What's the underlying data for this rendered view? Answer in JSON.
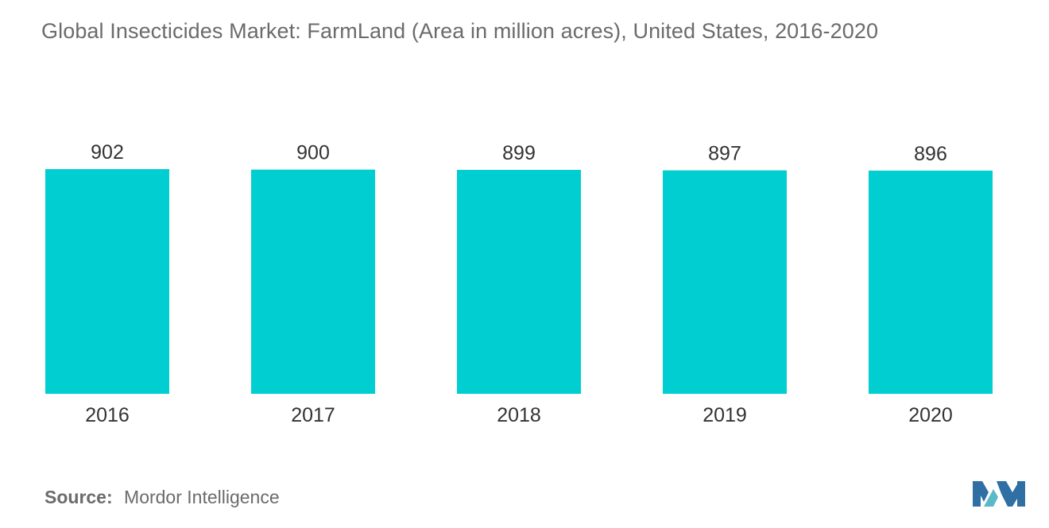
{
  "title": "Global Insecticides Market: FarmLand (Area in million acres), United States, 2016-2020",
  "source": {
    "label": "Source:",
    "text": "Mordor Intelligence"
  },
  "logo": {
    "icon": "mordor-intelligence-logo-icon",
    "colors": [
      "#2f6fa3",
      "#5ab9c9"
    ]
  },
  "colors": {
    "bar": "#00ced1",
    "title": "#6b6b6b",
    "labels": "#333333"
  },
  "chart_data": {
    "type": "bar",
    "title": "Global Insecticides Market: FarmLand (Area in million acres), United States, 2016-2020",
    "categories": [
      "2016",
      "2017",
      "2018",
      "2019",
      "2020"
    ],
    "values": [
      902,
      900,
      899,
      897,
      896
    ],
    "value_labels": [
      "902",
      "900",
      "899",
      "897",
      "896"
    ],
    "xlabel": "",
    "ylabel": "",
    "ylim": [
      0,
      902
    ],
    "grid": false,
    "legend": "none"
  }
}
